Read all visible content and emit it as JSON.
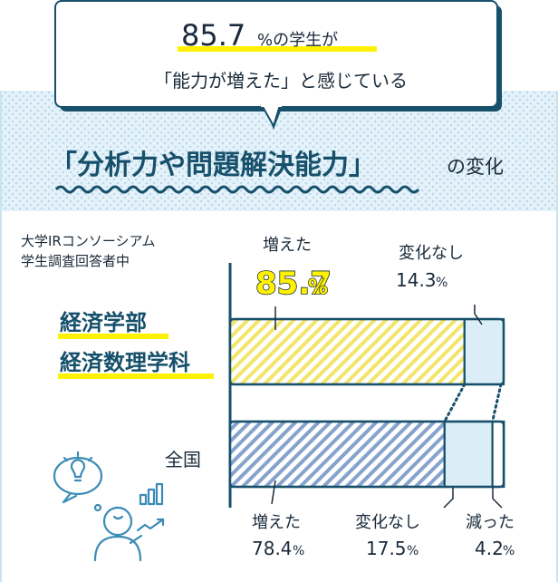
{
  "callout": {
    "pct_number": "85.7",
    "pct_suffix": "%の学生が",
    "line2": "「能力が増えた」と感じている"
  },
  "heading": {
    "main": "「分析力や問題解決能力」",
    "suffix": "の変化"
  },
  "source_note": {
    "line1": "大学IRコンソーシアム",
    "line2": "学生調査回答者中"
  },
  "colors": {
    "navy": "#16506b",
    "yellow": "#fff200",
    "yellow_hatch": "#f7ea6a",
    "blue_hatch": "#7f9fc9",
    "light_blue": "#dbeef7",
    "dotted_bg": "#c9e3f1"
  },
  "icon": "person-idea-chart-icon",
  "chart_data": {
    "type": "bar",
    "orientation": "horizontal",
    "stacked": true,
    "categories": [
      "経済学部\n経済数理学科",
      "全国"
    ],
    "category_labels": {
      "dept_line1": "経済学部",
      "dept_line2": "経済数理学科",
      "national": "全国"
    },
    "series": [
      {
        "name": "増えた",
        "values": [
          85.7,
          78.4
        ]
      },
      {
        "name": "変化なし",
        "values": [
          14.3,
          17.5
        ]
      },
      {
        "name": "減った",
        "values": [
          0,
          4.2
        ]
      }
    ],
    "xlim": [
      0,
      100
    ],
    "labels": {
      "dept_increase": {
        "text": "増えた",
        "num": "85.7",
        "unit": "%"
      },
      "dept_nochange": {
        "text": "変化なし",
        "num": "14.3",
        "unit": "%"
      },
      "nat_increase": {
        "text": "増えた",
        "num": "78.4",
        "unit": "%"
      },
      "nat_nochange": {
        "text": "変化なし",
        "num": "17.5",
        "unit": "%"
      },
      "nat_decrease": {
        "text": "減った",
        "num": "4.2",
        "unit": "%"
      }
    }
  }
}
